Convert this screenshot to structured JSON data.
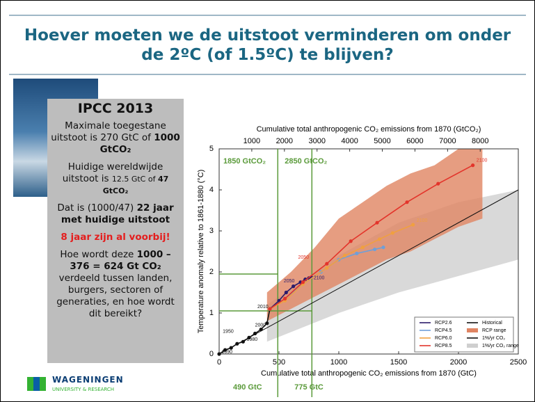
{
  "title": "Hoever moeten we de uitstoot verminderen om onder de 2ºC (of 1.5ºC) te blijven?",
  "sidebar": {
    "heading": "IPCC 2013",
    "paragraphs": [
      {
        "runs": [
          {
            "text": "Maximale toegestane uitstoot is 270 GtC of "
          },
          {
            "text": "1000 GtCO₂",
            "bold": true
          }
        ]
      },
      {
        "runs": [
          {
            "text": "Huidige wereldwijde uitstoot is "
          },
          {
            "text": "12.5 GtC of ",
            "small": true
          },
          {
            "text": "47 GtCO₂",
            "bold": true,
            "small": true
          }
        ]
      },
      {
        "runs": [
          {
            "text": "Dat is (1000/47) "
          },
          {
            "text": "22 jaar met huidige uitstoot",
            "bold": true
          }
        ]
      },
      {
        "runs": [
          {
            "text": "8 jaar zijn al voorbij!",
            "bold": true,
            "color": "#e41e1e"
          }
        ]
      },
      {
        "runs": [
          {
            "text": "Hoe wordt deze "
          },
          {
            "text": "1000 – 376 = 624 Gt CO₂",
            "bold": true
          },
          {
            "text": " verdeeld tussen landen, burgers, sectoren of generaties, en hoe wordt dit bereikt?"
          }
        ]
      }
    ]
  },
  "logo": {
    "name": "WAGENINGEN",
    "subtitle": "UNIVERSITY & RESEARCH"
  },
  "chart_data": {
    "type": "line",
    "x_label": "Cumulative total anthropogenic CO₂ emissions from 1870 (GtC)",
    "x2_label": "Cumulative total anthropogenic CO₂ emissions from 1870 (GtCO₂)",
    "y_label": "Temperature anomaly relative to 1861-1880 (°C)",
    "xlim": [
      0,
      2500
    ],
    "xticks": [
      0,
      500,
      1000,
      1500,
      2000,
      2500
    ],
    "x2lim": [
      0,
      9167
    ],
    "x2ticks": [
      1000,
      2000,
      3000,
      4000,
      5000,
      6000,
      7000,
      8000
    ],
    "ylim": [
      0,
      5
    ],
    "yticks": [
      0,
      1,
      2,
      3,
      4,
      5
    ],
    "bands": [
      {
        "name": "1%/yr CO₂ range",
        "color": "#cfcfcf",
        "x": [
          400,
          1000,
          1500,
          2000,
          2500
        ],
        "lower": [
          0.3,
          1.0,
          1.5,
          1.9,
          2.3
        ],
        "upper": [
          1.2,
          2.4,
          3.2,
          3.7,
          4.0
        ]
      },
      {
        "name": "RCP range",
        "color": "#e08462",
        "x": [
          400,
          600,
          800,
          1000,
          1200,
          1400,
          1600,
          1800,
          2000,
          2200
        ],
        "lower": [
          0.8,
          1.1,
          1.4,
          1.7,
          2.0,
          2.3,
          2.5,
          2.8,
          3.1,
          3.3
        ],
        "upper": [
          1.5,
          2.0,
          2.6,
          3.3,
          3.7,
          4.1,
          4.4,
          4.6,
          5.0,
          5.0
        ]
      }
    ],
    "series": [
      {
        "name": "1%/yr CO₂",
        "color": "#111111",
        "markers": false,
        "x": [
          0,
          2500
        ],
        "values": [
          0,
          4.0
        ]
      },
      {
        "name": "Historical",
        "color": "#111111",
        "markers": true,
        "x": [
          0,
          50,
          100,
          150,
          200,
          250,
          300,
          350,
          400,
          424
        ],
        "values": [
          0,
          0.1,
          0.15,
          0.25,
          0.3,
          0.4,
          0.5,
          0.6,
          0.75,
          1.1
        ]
      },
      {
        "name": "RCP2.6",
        "color": "#2b1b6b",
        "markers": true,
        "x": [
          424,
          500,
          560,
          620,
          680,
          720,
          750,
          770
        ],
        "values": [
          1.1,
          1.3,
          1.5,
          1.65,
          1.75,
          1.82,
          1.85,
          1.87
        ]
      },
      {
        "name": "RCP4.5",
        "color": "#6f9fd8",
        "markers": true,
        "x": [
          424,
          550,
          700,
          850,
          1000,
          1150,
          1300,
          1372
        ],
        "values": [
          1.1,
          1.35,
          1.7,
          2.0,
          2.3,
          2.45,
          2.55,
          2.6
        ]
      },
      {
        "name": "RCP6.0",
        "color": "#f0a040",
        "markers": true,
        "x": [
          424,
          550,
          700,
          900,
          1050,
          1200,
          1340,
          1450,
          1620
        ],
        "values": [
          1.1,
          1.3,
          1.7,
          2.1,
          2.4,
          2.6,
          2.8,
          2.95,
          3.15
        ]
      },
      {
        "name": "RCP8.5",
        "color": "#e3342b",
        "markers": true,
        "x": [
          424,
          550,
          700,
          900,
          1100,
          1320,
          1570,
          1830,
          2120
        ],
        "values": [
          1.1,
          1.35,
          1.75,
          2.2,
          2.75,
          3.2,
          3.7,
          4.15,
          4.6
        ]
      }
    ],
    "year_labels": [
      {
        "x": 20,
        "y": 0.05,
        "label": "1890",
        "color": "#111111"
      },
      {
        "x": 30,
        "y": 0.55,
        "label": "1950",
        "color": "#111111"
      },
      {
        "x": 230,
        "y": 0.35,
        "label": "1980",
        "color": "#111111"
      },
      {
        "x": 300,
        "y": 0.7,
        "label": "2000",
        "color": "#111111"
      },
      {
        "x": 320,
        "y": 1.15,
        "label": "2010",
        "color": "#111111"
      },
      {
        "x": 540,
        "y": 1.78,
        "label": "2050",
        "color": "#2b1b6b"
      },
      {
        "x": 790,
        "y": 1.85,
        "label": "2100",
        "color": "#2b1b6b"
      },
      {
        "x": 660,
        "y": 2.35,
        "label": "2050",
        "color": "#e3342b"
      },
      {
        "x": 1650,
        "y": 3.25,
        "label": "2100",
        "color": "#f0a040"
      },
      {
        "x": 2150,
        "y": 4.72,
        "label": "2100",
        "color": "#e3342b"
      }
    ],
    "thresholds": [
      {
        "x": 490,
        "y": 1.95,
        "x_label": "490 GtC",
        "x2_label": "1850 GtCO₂"
      },
      {
        "x": 775,
        "y": 1.05,
        "x_label": "775 GtC",
        "x2_label": "2850 GtCO₂"
      }
    ],
    "threshold_color": "#5a9a3a",
    "legend": {
      "columns": [
        [
          "RCP2.6",
          "RCP4.5",
          "RCP6.0",
          "RCP8.5"
        ],
        [
          "Historical",
          "RCP range",
          "1%/yr CO₂",
          "1%/yr CO₂ range"
        ]
      ]
    }
  }
}
